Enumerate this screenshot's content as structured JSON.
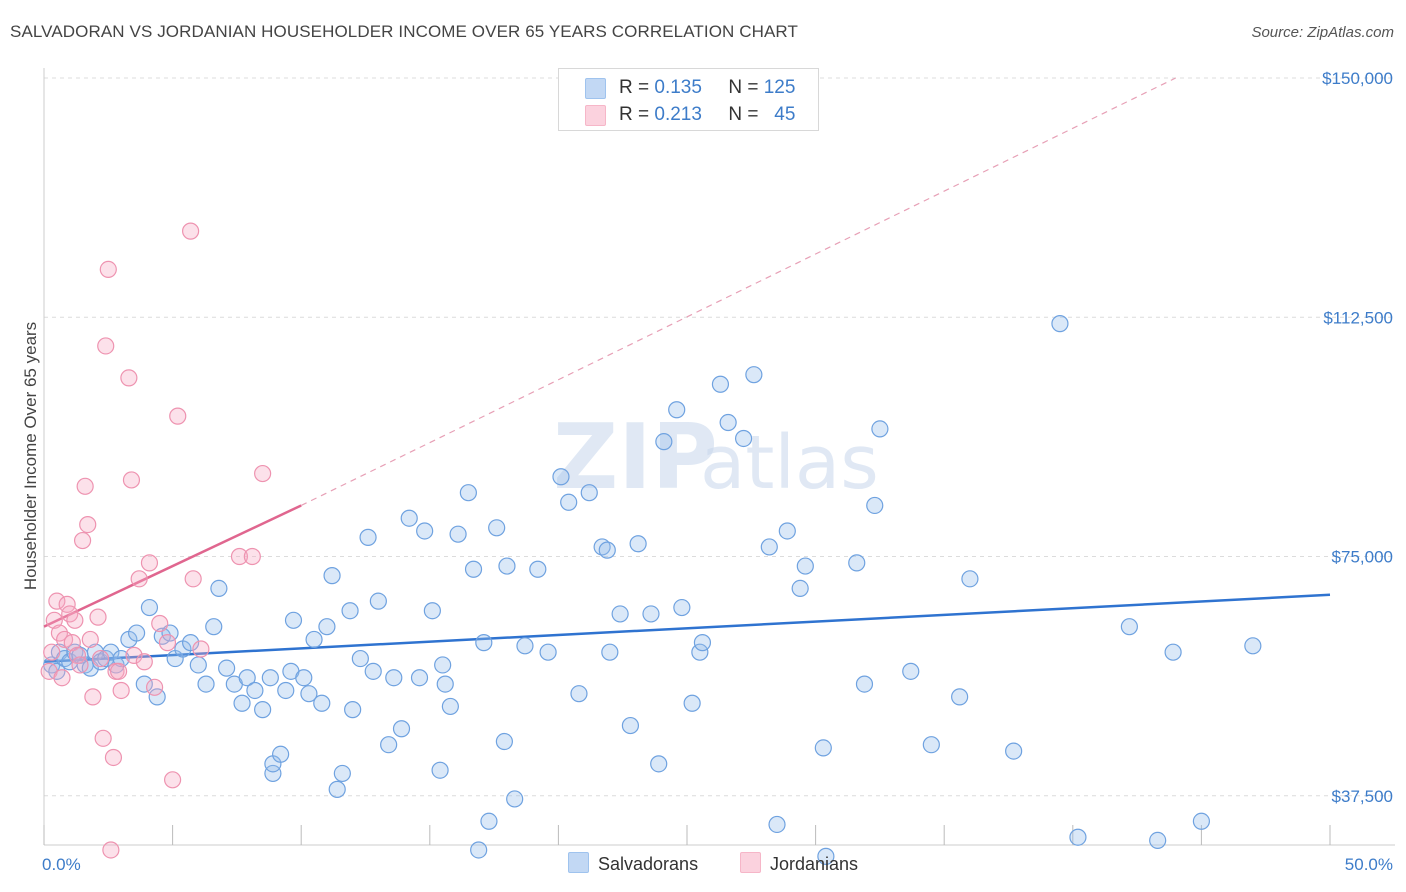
{
  "title": "SALVADORAN VS JORDANIAN HOUSEHOLDER INCOME OVER 65 YEARS CORRELATION CHART",
  "source": "Source: ZipAtlas.com",
  "watermark": {
    "zip": "ZIP",
    "atlas": "atlas"
  },
  "legend": [
    {
      "r_label": "R =",
      "r_value": "0.135",
      "n_label": "N =",
      "n_value": "125",
      "color": "#9fc3ee"
    },
    {
      "r_label": "R =",
      "r_value": "0.213",
      "n_label": "N =",
      "n_value": "45",
      "color": "#f6b6c8"
    }
  ],
  "bottom_legend": [
    {
      "label": "Salvadorans",
      "color": "#9fc3ee"
    },
    {
      "label": "Jordanians",
      "color": "#f6b6c8"
    }
  ],
  "chart_data": {
    "type": "scatter",
    "ylabel": "Householder Income Over 65 years",
    "xlim": [
      0,
      50
    ],
    "ylim": [
      0,
      150000
    ],
    "x_tick_labels": [
      "0.0%",
      "50.0%"
    ],
    "y_tick_labels": [
      "$37,500",
      "$75,000",
      "$112,500",
      "$150,000"
    ],
    "y_ticks": [
      37500,
      75000,
      112500,
      150000
    ],
    "grid": true,
    "series": [
      {
        "name": "Salvadorans",
        "color": "#6fa2e0",
        "trend": {
          "x": [
            0,
            50
          ],
          "y": [
            58500,
            69000
          ]
        },
        "points": [
          [
            0.3,
            58000
          ],
          [
            0.5,
            57000
          ],
          [
            0.6,
            60000
          ],
          [
            0.8,
            59000
          ],
          [
            1.0,
            58500
          ],
          [
            1.2,
            60000
          ],
          [
            1.4,
            59500
          ],
          [
            1.6,
            58000
          ],
          [
            1.8,
            57500
          ],
          [
            2.0,
            60000
          ],
          [
            2.2,
            58500
          ],
          [
            2.4,
            59000
          ],
          [
            2.6,
            60000
          ],
          [
            2.8,
            58000
          ],
          [
            3.0,
            59000
          ],
          [
            3.3,
            62000
          ],
          [
            3.6,
            63000
          ],
          [
            3.9,
            55000
          ],
          [
            4.1,
            67000
          ],
          [
            4.4,
            53000
          ],
          [
            4.6,
            62500
          ],
          [
            4.9,
            63000
          ],
          [
            5.1,
            59000
          ],
          [
            5.4,
            60500
          ],
          [
            5.7,
            61500
          ],
          [
            6.0,
            58000
          ],
          [
            6.3,
            55000
          ],
          [
            6.6,
            64000
          ],
          [
            6.8,
            70000
          ],
          [
            7.1,
            57500
          ],
          [
            7.4,
            55000
          ],
          [
            7.7,
            52000
          ],
          [
            7.9,
            56000
          ],
          [
            8.2,
            54000
          ],
          [
            8.5,
            51000
          ],
          [
            8.8,
            56000
          ],
          [
            8.9,
            41000
          ],
          [
            8.9,
            42500
          ],
          [
            9.4,
            54000
          ],
          [
            9.6,
            57000
          ],
          [
            9.7,
            65000
          ],
          [
            10.1,
            56000
          ],
          [
            10.3,
            53500
          ],
          [
            10.5,
            62000
          ],
          [
            10.8,
            52000
          ],
          [
            11.0,
            64000
          ],
          [
            11.2,
            72000
          ],
          [
            11.4,
            38500
          ],
          [
            11.6,
            41000
          ],
          [
            11.9,
            66500
          ],
          [
            12.0,
            51000
          ],
          [
            12.3,
            59000
          ],
          [
            12.6,
            78000
          ],
          [
            12.8,
            57000
          ],
          [
            13.0,
            68000
          ],
          [
            13.4,
            45500
          ],
          [
            13.6,
            56000
          ],
          [
            13.9,
            48000
          ],
          [
            14.2,
            81000
          ],
          [
            14.6,
            56000
          ],
          [
            14.8,
            79000
          ],
          [
            15.1,
            66500
          ],
          [
            15.4,
            41500
          ],
          [
            15.6,
            55000
          ],
          [
            15.8,
            51500
          ],
          [
            16.1,
            78500
          ],
          [
            16.5,
            85000
          ],
          [
            16.7,
            73000
          ],
          [
            16.9,
            29000
          ],
          [
            17.1,
            61500
          ],
          [
            17.3,
            33500
          ],
          [
            17.9,
            46000
          ],
          [
            17.6,
            79500
          ],
          [
            18.0,
            73500
          ],
          [
            18.3,
            37000
          ],
          [
            18.7,
            61000
          ],
          [
            19.2,
            73000
          ],
          [
            19.6,
            60000
          ],
          [
            20.1,
            87500
          ],
          [
            20.4,
            83500
          ],
          [
            20.8,
            53500
          ],
          [
            21.2,
            85000
          ],
          [
            21.7,
            76500
          ],
          [
            21.9,
            76000
          ],
          [
            22.4,
            66000
          ],
          [
            22.8,
            48500
          ],
          [
            23.1,
            77000
          ],
          [
            23.6,
            66000
          ],
          [
            23.9,
            42500
          ],
          [
            24.1,
            93000
          ],
          [
            24.8,
            67000
          ],
          [
            24.6,
            98000
          ],
          [
            25.2,
            52000
          ],
          [
            25.5,
            60000
          ],
          [
            25.6,
            61500
          ],
          [
            26.3,
            102000
          ],
          [
            26.6,
            96000
          ],
          [
            27.2,
            93500
          ],
          [
            27.6,
            103500
          ],
          [
            28.2,
            76500
          ],
          [
            28.9,
            79000
          ],
          [
            29.6,
            73500
          ],
          [
            29.4,
            70000
          ],
          [
            30.4,
            28000
          ],
          [
            30.3,
            45000
          ],
          [
            31.6,
            74000
          ],
          [
            31.9,
            55000
          ],
          [
            32.3,
            83000
          ],
          [
            32.5,
            95000
          ],
          [
            33.7,
            57000
          ],
          [
            34.5,
            45500
          ],
          [
            35.6,
            53000
          ],
          [
            36.0,
            71500
          ],
          [
            37.7,
            44500
          ],
          [
            39.5,
            111500
          ],
          [
            40.2,
            31000
          ],
          [
            45.0,
            33500
          ],
          [
            47.0,
            61000
          ],
          [
            42.2,
            64000
          ],
          [
            43.3,
            30500
          ],
          [
            43.9,
            60000
          ],
          [
            28.5,
            33000
          ],
          [
            22.0,
            60000
          ],
          [
            15.5,
            58000
          ],
          [
            9.2,
            44000
          ]
        ]
      },
      {
        "name": "Jordanians",
        "color": "#f08aa8",
        "trend": {
          "x": [
            0,
            10
          ],
          "y": [
            64000,
            83000
          ]
        },
        "trend_ext": {
          "x": [
            10,
            44
          ],
          "y": [
            83000,
            150000
          ]
        },
        "points": [
          [
            0.2,
            57000
          ],
          [
            0.3,
            60000
          ],
          [
            0.4,
            65000
          ],
          [
            0.5,
            68000
          ],
          [
            0.6,
            63000
          ],
          [
            0.7,
            56000
          ],
          [
            0.8,
            62000
          ],
          [
            0.9,
            67500
          ],
          [
            1.0,
            66000
          ],
          [
            1.1,
            61500
          ],
          [
            1.2,
            65000
          ],
          [
            1.3,
            59500
          ],
          [
            1.4,
            58000
          ],
          [
            1.5,
            77500
          ],
          [
            1.6,
            86000
          ],
          [
            1.7,
            80000
          ],
          [
            1.8,
            62000
          ],
          [
            1.9,
            53000
          ],
          [
            2.1,
            65500
          ],
          [
            2.2,
            59000
          ],
          [
            2.3,
            46500
          ],
          [
            2.4,
            108000
          ],
          [
            2.5,
            120000
          ],
          [
            2.6,
            29000
          ],
          [
            2.7,
            43500
          ],
          [
            2.8,
            57000
          ],
          [
            2.9,
            57000
          ],
          [
            3.0,
            54000
          ],
          [
            3.3,
            103000
          ],
          [
            3.4,
            87000
          ],
          [
            3.5,
            59500
          ],
          [
            3.7,
            71500
          ],
          [
            3.9,
            58500
          ],
          [
            4.1,
            74000
          ],
          [
            4.3,
            54500
          ],
          [
            4.5,
            64500
          ],
          [
            4.8,
            61500
          ],
          [
            5.0,
            40000
          ],
          [
            5.2,
            97000
          ],
          [
            5.7,
            126000
          ],
          [
            5.8,
            71500
          ],
          [
            6.1,
            60500
          ],
          [
            7.6,
            75000
          ],
          [
            8.1,
            75000
          ],
          [
            8.5,
            88000
          ]
        ]
      }
    ]
  }
}
